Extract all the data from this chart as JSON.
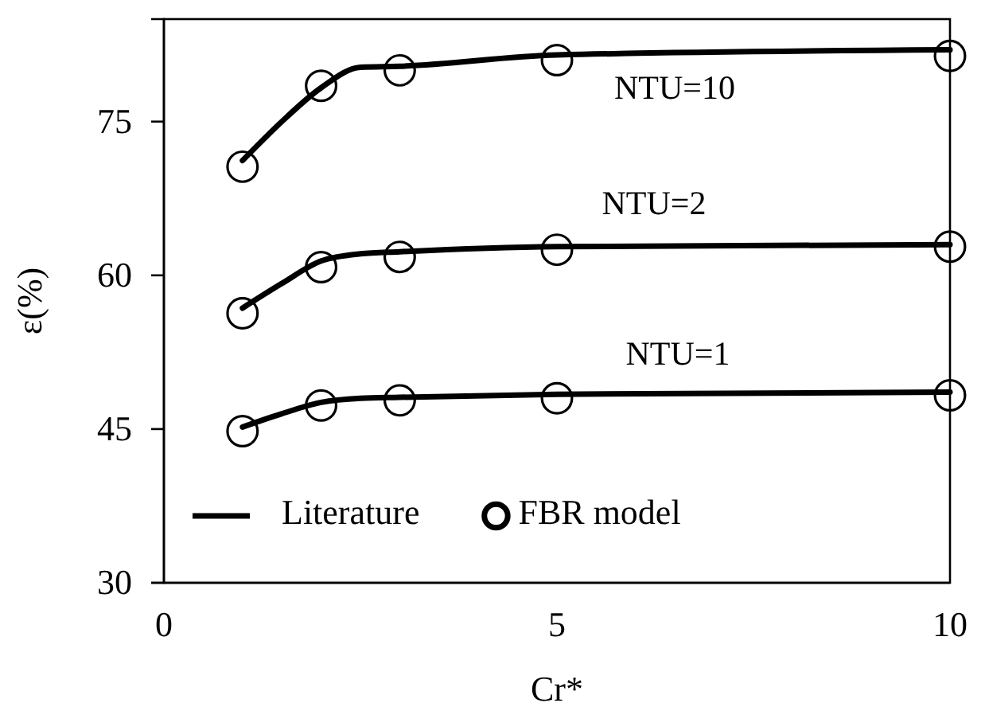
{
  "chart_data": {
    "type": "line",
    "xlabel": "Cr*",
    "ylabel": "ε(%)",
    "xlim": [
      0,
      10
    ],
    "xticks": [
      0,
      5,
      10
    ],
    "ylim": [
      30,
      85
    ],
    "yticks": [
      30,
      45,
      60,
      75
    ],
    "grid": false,
    "legend": "bottom",
    "series": [
      {
        "name": "Literature",
        "marker": "none",
        "line_style": "solid",
        "color": "#000000",
        "x": [
          1,
          1.5,
          2,
          2.5,
          3,
          5,
          10
        ],
        "values": [
          71.2,
          75.0,
          78.3,
          80.3,
          80.4,
          81.5,
          82.0
        ]
      },
      {
        "marker": "none",
        "line_style": "solid",
        "color": "#000000",
        "x": [
          1,
          1.5,
          2,
          2.5,
          3,
          5,
          10
        ],
        "values": [
          56.8,
          59.2,
          61.4,
          62.1,
          62.3,
          62.8,
          63.0
        ]
      },
      {
        "marker": "none",
        "line_style": "solid",
        "color": "#000000",
        "x": [
          1,
          1.5,
          2,
          2.5,
          3,
          5,
          10
        ],
        "values": [
          45.2,
          46.5,
          47.6,
          48.0,
          48.1,
          48.4,
          48.6
        ]
      },
      {
        "name": "FBR model",
        "type": "scatter",
        "marker": "circle",
        "color": "#000000",
        "x": [
          1,
          2,
          3,
          5,
          10
        ],
        "values": [
          70.6,
          78.5,
          80.0,
          81.0,
          81.4
        ]
      },
      {
        "type": "scatter",
        "marker": "circle",
        "color": "#000000",
        "x": [
          1,
          2,
          3,
          5,
          10
        ],
        "values": [
          56.3,
          60.8,
          61.8,
          62.5,
          62.8
        ]
      },
      {
        "type": "scatter",
        "marker": "circle",
        "color": "#000000",
        "x": [
          1,
          2,
          3,
          5,
          10
        ],
        "values": [
          44.8,
          47.3,
          47.8,
          48.0,
          48.3
        ]
      }
    ],
    "annotations": [
      "NTU=10",
      "NTU=2",
      "NTU=1"
    ]
  }
}
